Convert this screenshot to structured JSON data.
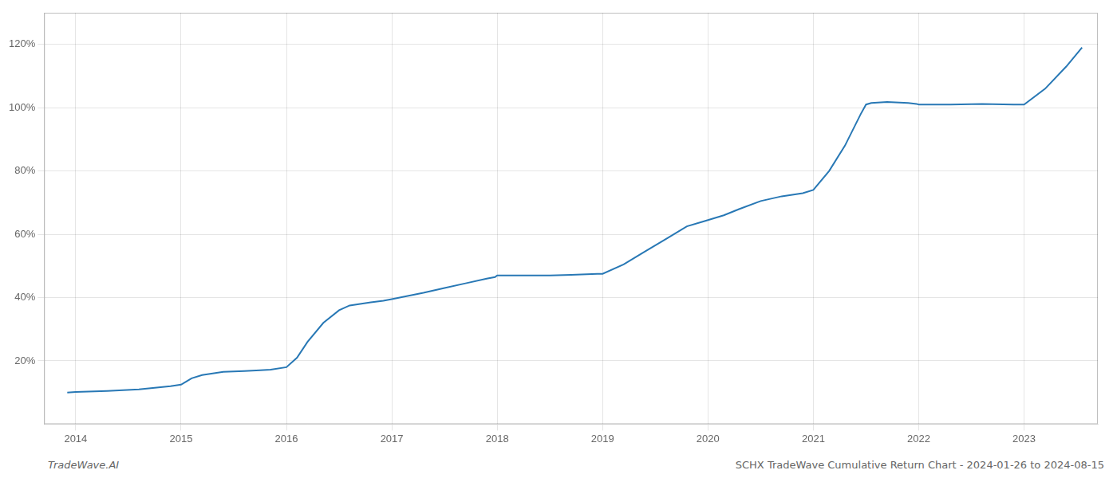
{
  "chart_data": {
    "type": "line",
    "color": "#2878b5",
    "grid": true,
    "annotations": [
      "TradeWave.AI",
      "SCHX TradeWave Cumulative Return Chart - 2024-01-26 to 2024-08-15"
    ],
    "x": [
      2013.92,
      2014.0,
      2014.3,
      2014.6,
      2014.9,
      2015.0,
      2015.05,
      2015.1,
      2015.2,
      2015.4,
      2015.6,
      2015.75,
      2015.85,
      2016.0,
      2016.1,
      2016.2,
      2016.35,
      2016.5,
      2016.6,
      2016.8,
      2016.92,
      2017.0,
      2017.15,
      2017.3,
      2017.5,
      2017.7,
      2017.9,
      2017.98,
      2018.0,
      2018.2,
      2018.5,
      2018.7,
      2018.95,
      2019.0,
      2019.2,
      2019.4,
      2019.6,
      2019.8,
      2019.95,
      2020.0,
      2020.15,
      2020.3,
      2020.5,
      2020.7,
      2020.9,
      2021.0,
      2021.15,
      2021.3,
      2021.45,
      2021.5,
      2021.55,
      2021.7,
      2021.9,
      2021.98,
      2022.0,
      2022.3,
      2022.6,
      2022.9,
      2022.98,
      2023.0,
      2023.2,
      2023.4,
      2023.55
    ],
    "values": [
      10.0,
      10.2,
      10.5,
      11.0,
      12.0,
      12.5,
      13.5,
      14.5,
      15.5,
      16.5,
      16.8,
      17.0,
      17.2,
      18.0,
      21.0,
      26.0,
      32.0,
      36.0,
      37.5,
      38.5,
      39.0,
      39.5,
      40.5,
      41.5,
      43.0,
      44.5,
      46.0,
      46.5,
      47.0,
      47.0,
      47.0,
      47.2,
      47.5,
      47.5,
      50.5,
      54.5,
      58.5,
      62.5,
      64.0,
      64.5,
      66.0,
      68.0,
      70.5,
      72.0,
      73.0,
      74.0,
      80.0,
      88.0,
      98.0,
      101.0,
      101.5,
      101.8,
      101.5,
      101.2,
      101.0,
      101.0,
      101.2,
      101.0,
      101.0,
      101.0,
      106.0,
      113.0,
      119.0
    ],
    "xlim": [
      2013.7,
      2023.7
    ],
    "xticks": [
      2014,
      2015,
      2016,
      2017,
      2018,
      2019,
      2020,
      2021,
      2022,
      2023
    ],
    "ylim": [
      0,
      130
    ],
    "yticks": [
      {
        "value": 20,
        "label": "20%"
      },
      {
        "value": 40,
        "label": "40%"
      },
      {
        "value": 60,
        "label": "60%"
      },
      {
        "value": 80,
        "label": "80%"
      },
      {
        "value": 100,
        "label": "100%"
      },
      {
        "value": 120,
        "label": "120%"
      }
    ]
  }
}
